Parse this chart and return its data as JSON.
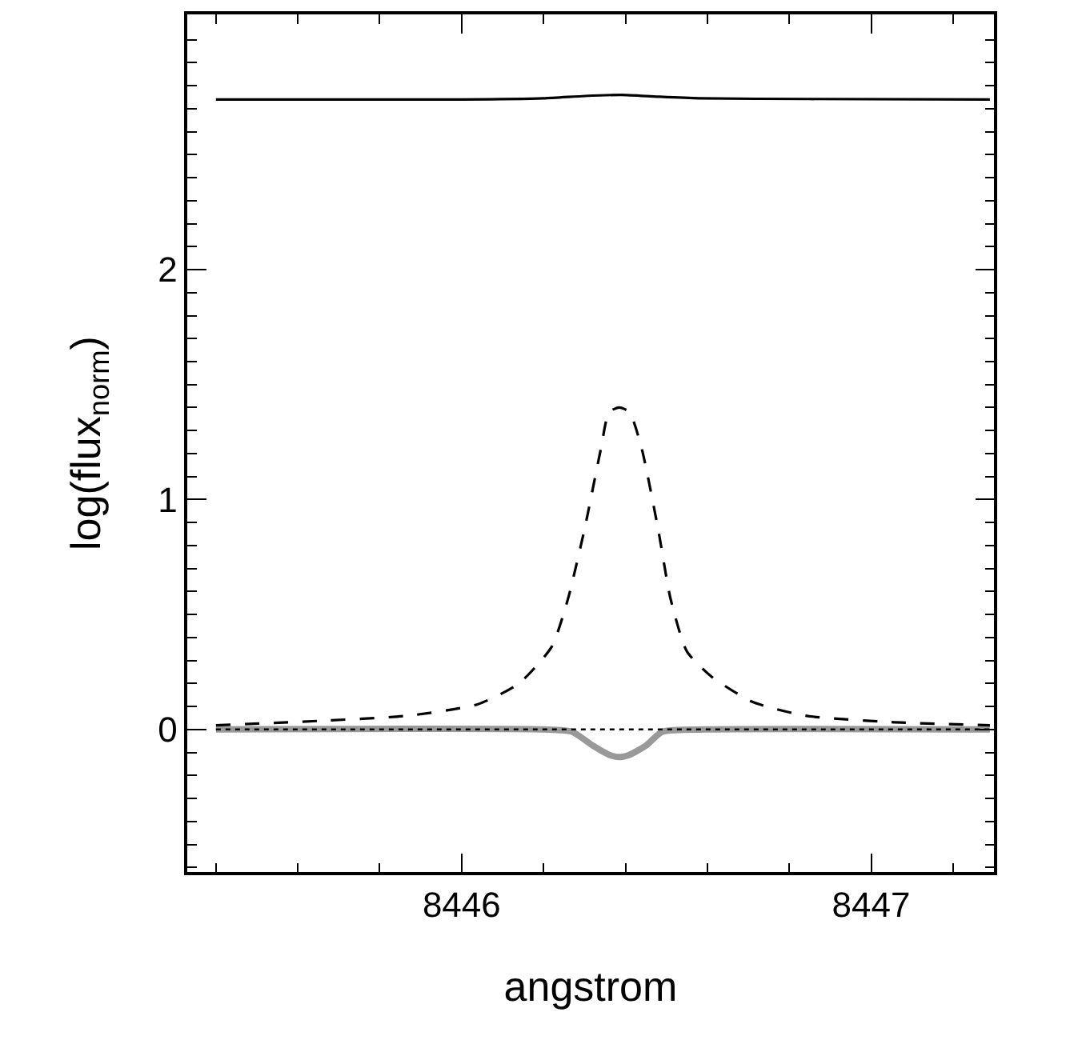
{
  "chart_data": {
    "type": "line",
    "xlabel": "angstrom",
    "ylabel": "log(flux$_{norm}$)",
    "xlim": [
      8445.33,
      8447.3
    ],
    "ylim": [
      -0.62,
      3.11
    ],
    "xticks": [
      {
        "value": 8445.4,
        "label": null
      },
      {
        "value": 8445.6,
        "label": null
      },
      {
        "value": 8445.8,
        "label": null
      },
      8446,
      {
        "value": 8446.2,
        "label": null
      },
      {
        "value": 8446.4,
        "label": null
      },
      {
        "value": 8446.6,
        "label": null
      },
      {
        "value": 8446.8,
        "label": null
      },
      8447,
      {
        "value": 8447.2,
        "label": null
      }
    ],
    "yticks": [
      {
        "value": -0.6,
        "label": null
      },
      {
        "value": -0.5,
        "label": null
      },
      {
        "value": -0.4,
        "label": null
      },
      {
        "value": -0.3,
        "label": null
      },
      {
        "value": -0.2,
        "label": null
      },
      {
        "value": -0.1,
        "label": null
      },
      0,
      {
        "value": 0.1,
        "label": null
      },
      {
        "value": 0.2,
        "label": null
      },
      {
        "value": 0.3,
        "label": null
      },
      {
        "value": 0.4,
        "label": null
      },
      {
        "value": 0.5,
        "label": null
      },
      {
        "value": 0.6,
        "label": null
      },
      {
        "value": 0.7,
        "label": null
      },
      {
        "value": 0.8,
        "label": null
      },
      {
        "value": 0.9,
        "label": null
      },
      1,
      {
        "value": 1.1,
        "label": null
      },
      {
        "value": 1.2,
        "label": null
      },
      {
        "value": 1.3,
        "label": null
      },
      {
        "value": 1.4,
        "label": null
      },
      {
        "value": 1.5,
        "label": null
      },
      {
        "value": 1.6,
        "label": null
      },
      {
        "value": 1.7,
        "label": null
      },
      {
        "value": 1.8,
        "label": null
      },
      {
        "value": 1.9,
        "label": null
      },
      2,
      {
        "value": 2.1,
        "label": null
      },
      {
        "value": 2.2,
        "label": null
      },
      {
        "value": 2.3,
        "label": null
      },
      {
        "value": 2.4,
        "label": null
      },
      {
        "value": 2.5,
        "label": null
      },
      {
        "value": 2.6,
        "label": null
      },
      {
        "value": 2.7,
        "label": null
      },
      {
        "value": 2.8,
        "label": null
      },
      {
        "value": 2.9,
        "label": null
      },
      {
        "value": 3.0,
        "label": null
      }
    ],
    "marker": "none",
    "series": [
      {
        "color": "#999999",
        "line_style": "solid",
        "x": [
          8445.4,
          8446.2,
          8446.27,
          8446.32,
          8446.36,
          8446.385,
          8446.41,
          8446.45,
          8446.49,
          8446.6,
          8447.29
        ],
        "values": [
          0,
          0,
          -0.01,
          -0.07,
          -0.11,
          -0.12,
          -0.11,
          -0.07,
          -0.01,
          0,
          0
        ]
      },
      {
        "color": "#000000",
        "line_style": "dotted",
        "x": [
          8445.4,
          8447.29
        ],
        "values": [
          0,
          0
        ]
      },
      {
        "color": "#000000",
        "line_style": "dashed",
        "x": [
          8445.4,
          8445.65,
          8445.87,
          8446.04,
          8446.14,
          8446.22,
          8446.26,
          8446.3,
          8446.34,
          8446.36,
          8446.385,
          8446.41,
          8446.44,
          8446.48,
          8446.51,
          8446.55,
          8446.61,
          8446.71,
          8446.84,
          8447.05,
          8447.29
        ],
        "values": [
          0.018,
          0.037,
          0.06,
          0.11,
          0.2,
          0.36,
          0.57,
          0.87,
          1.22,
          1.38,
          1.4,
          1.38,
          1.22,
          0.87,
          0.57,
          0.34,
          0.23,
          0.12,
          0.06,
          0.032,
          0.018
        ]
      },
      {
        "color": "#000000",
        "line_style": "solid",
        "x": [
          8445.4,
          8446.0,
          8446.2,
          8446.3,
          8446.39,
          8446.48,
          8446.58,
          8446.85,
          8447.29
        ],
        "values": [
          2.74,
          2.74,
          2.745,
          2.755,
          2.76,
          2.752,
          2.745,
          2.742,
          2.74
        ]
      }
    ]
  }
}
